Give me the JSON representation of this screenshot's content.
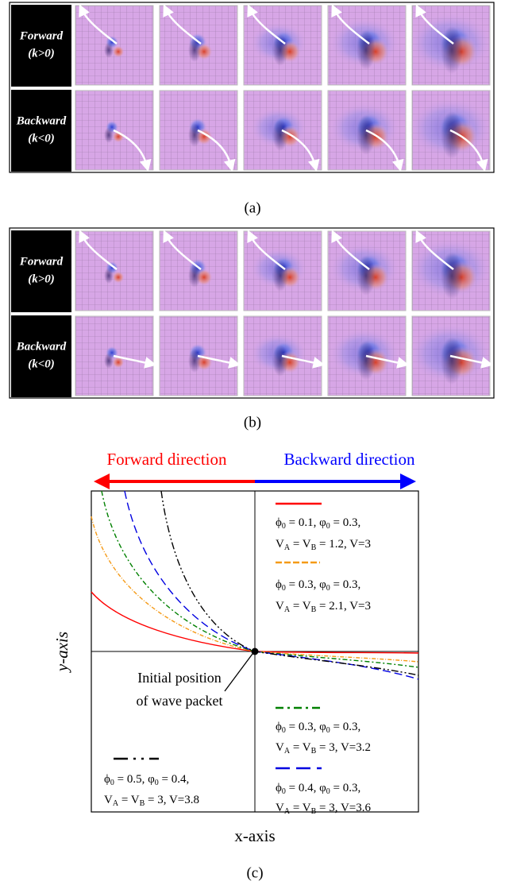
{
  "panel_a": {
    "label": "(a)",
    "rows": [
      {
        "direction": "Forward",
        "condition": "(k>0)"
      },
      {
        "direction": "Backward",
        "condition": "(k<0)"
      }
    ]
  },
  "panel_b": {
    "label": "(b)",
    "rows": [
      {
        "direction": "Forward",
        "condition": "(k>0)"
      },
      {
        "direction": "Backward",
        "condition": "(k<0)"
      }
    ]
  },
  "panel_c": {
    "label": "(c)",
    "forward_direction": "Forward direction",
    "backward_direction": "Backward direction",
    "y_axis": "y-axis",
    "x_axis": "x-axis",
    "annotation": [
      "Initial position",
      "of wave packet"
    ],
    "legend": [
      {
        "line1": "ϕ_0 = 0.1, φ_0 = 0.3,",
        "line2": "V_A = V_B = 1.2, V=3"
      },
      {
        "line1": "ϕ_0 = 0.3, φ_0 = 0.3,",
        "line2": "V_A = V_B = 2.1, V=3"
      },
      {
        "line1": "ϕ_0 = 0.3, φ_0 = 0.3,",
        "line2": "V_A = V_B = 3, V=3.2"
      },
      {
        "line1": "ϕ_0 = 0.4, φ_0 = 0.3,",
        "line2": "V_A = V_B = 3, V=3.6"
      },
      {
        "line1": "ϕ_0 = 0.5, φ_0 = 0.4,",
        "line2": "V_A = V_B = 3, V=3.8"
      }
    ]
  }
}
